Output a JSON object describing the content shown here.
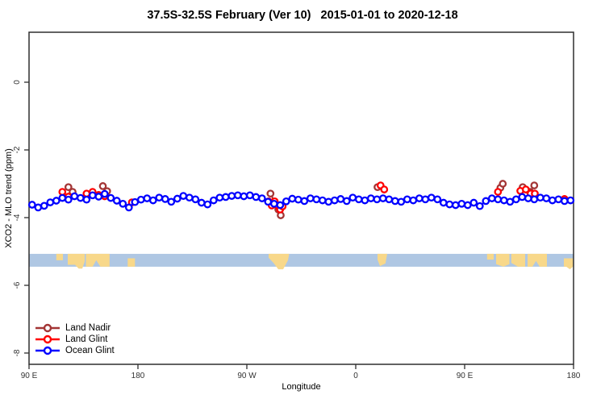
{
  "title": "37.5S-32.5S February (Ver 10)   2015-01-01 to 2020-12-18",
  "axes": {
    "xlabel": "Longitude",
    "ylabel": "XCO2 - MLO trend (ppm)",
    "x_unit_note": "degrees east of 90E along axis, wrapping 90E-180-90W-0-90E-180",
    "x_range": [
      0,
      450
    ],
    "y_range": [
      -8.35,
      1.45
    ],
    "x_ticks": [
      {
        "t": 0,
        "label": "90 E"
      },
      {
        "t": 90,
        "label": "180"
      },
      {
        "t": 180,
        "label": "90 W"
      },
      {
        "t": 270,
        "label": "0"
      },
      {
        "t": 360,
        "label": "90 E"
      },
      {
        "t": 450,
        "label": "180"
      }
    ],
    "y_ticks": [
      {
        "v": 0,
        "label": "0"
      },
      {
        "v": -2,
        "label": "-2"
      },
      {
        "v": -4,
        "label": "-4"
      },
      {
        "v": -6,
        "label": "-6"
      },
      {
        "v": -8,
        "label": "-8"
      }
    ],
    "axis_color": "#2e2e2e",
    "tick_label_color": "#333333"
  },
  "chart_data": {
    "type": "scatter",
    "title": "37.5S-32.5S February (Ver 10)   2015-01-01 to 2020-12-18",
    "xlabel": "Longitude",
    "ylabel": "XCO2 - MLO trend (ppm)",
    "grid": false,
    "legend_position": "bottom-left",
    "series": [
      {
        "name": "Land Nadir",
        "color": "#A33535",
        "points": [
          [
            32.5,
            -3.1
          ],
          [
            36,
            -3.24
          ],
          [
            61,
            -3.07
          ],
          [
            64.5,
            -3.22
          ],
          [
            199.5,
            -3.29
          ],
          [
            206,
            -3.76
          ],
          [
            208,
            -3.93
          ],
          [
            288,
            -3.1
          ],
          [
            389.5,
            -3.12
          ],
          [
            391.5,
            -3.0
          ],
          [
            408,
            -3.1
          ],
          [
            414,
            -3.24
          ],
          [
            417.5,
            -3.05
          ]
        ]
      },
      {
        "name": "Land Glint",
        "color": "#FF0000",
        "points": [
          [
            27.5,
            -3.24
          ],
          [
            32.5,
            -3.38
          ],
          [
            47.5,
            -3.29
          ],
          [
            52.5,
            -3.24
          ],
          [
            57.5,
            -3.33
          ],
          [
            62.5,
            -3.37
          ],
          [
            85,
            -3.55
          ],
          [
            198,
            -3.52
          ],
          [
            200.5,
            -3.64
          ],
          [
            203,
            -3.52
          ],
          [
            205.5,
            -3.64
          ],
          [
            207.5,
            -3.76
          ],
          [
            209.5,
            -3.67
          ],
          [
            290.5,
            -3.05
          ],
          [
            293.5,
            -3.17
          ],
          [
            387.5,
            -3.24
          ],
          [
            406,
            -3.21
          ],
          [
            410.5,
            -3.17
          ],
          [
            414.5,
            -3.29
          ],
          [
            418,
            -3.29
          ],
          [
            442.5,
            -3.45
          ]
        ]
      },
      {
        "name": "Ocean Glint",
        "color": "#0000FF",
        "points": [
          [
            2.5,
            -3.62
          ],
          [
            7.5,
            -3.7
          ],
          [
            12.5,
            -3.65
          ],
          [
            17.5,
            -3.55
          ],
          [
            22.5,
            -3.5
          ],
          [
            27.5,
            -3.42
          ],
          [
            32.5,
            -3.47
          ],
          [
            37.5,
            -3.37
          ],
          [
            42.5,
            -3.42
          ],
          [
            47.5,
            -3.47
          ],
          [
            52.5,
            -3.34
          ],
          [
            57.5,
            -3.38
          ],
          [
            62.5,
            -3.3
          ],
          [
            67.5,
            -3.42
          ],
          [
            72.5,
            -3.5
          ],
          [
            77.5,
            -3.59
          ],
          [
            82.5,
            -3.7
          ],
          [
            87.5,
            -3.54
          ],
          [
            92.5,
            -3.47
          ],
          [
            97.5,
            -3.43
          ],
          [
            102.5,
            -3.49
          ],
          [
            107.5,
            -3.41
          ],
          [
            112.5,
            -3.45
          ],
          [
            117.5,
            -3.53
          ],
          [
            122.5,
            -3.44
          ],
          [
            127.5,
            -3.36
          ],
          [
            132.5,
            -3.41
          ],
          [
            137.5,
            -3.46
          ],
          [
            142.5,
            -3.56
          ],
          [
            147.5,
            -3.61
          ],
          [
            152.5,
            -3.49
          ],
          [
            157.5,
            -3.41
          ],
          [
            162.5,
            -3.39
          ],
          [
            167.5,
            -3.36
          ],
          [
            172.5,
            -3.34
          ],
          [
            177.5,
            -3.37
          ],
          [
            182.5,
            -3.34
          ],
          [
            187.5,
            -3.39
          ],
          [
            192.5,
            -3.43
          ],
          [
            197.5,
            -3.53
          ],
          [
            202.5,
            -3.59
          ],
          [
            207.5,
            -3.63
          ],
          [
            212.5,
            -3.52
          ],
          [
            217.5,
            -3.44
          ],
          [
            222.5,
            -3.47
          ],
          [
            227.5,
            -3.51
          ],
          [
            232.5,
            -3.43
          ],
          [
            237.5,
            -3.46
          ],
          [
            242.5,
            -3.49
          ],
          [
            247.5,
            -3.53
          ],
          [
            252.5,
            -3.49
          ],
          [
            257.5,
            -3.45
          ],
          [
            262.5,
            -3.51
          ],
          [
            267.5,
            -3.41
          ],
          [
            272.5,
            -3.46
          ],
          [
            277.5,
            -3.49
          ],
          [
            282.5,
            -3.43
          ],
          [
            287.5,
            -3.46
          ],
          [
            292.5,
            -3.43
          ],
          [
            297.5,
            -3.46
          ],
          [
            302.5,
            -3.51
          ],
          [
            307.5,
            -3.53
          ],
          [
            312.5,
            -3.46
          ],
          [
            317.5,
            -3.49
          ],
          [
            322.5,
            -3.43
          ],
          [
            327.5,
            -3.46
          ],
          [
            332.5,
            -3.41
          ],
          [
            337.5,
            -3.46
          ],
          [
            342.5,
            -3.56
          ],
          [
            347.5,
            -3.61
          ],
          [
            352.5,
            -3.63
          ],
          [
            357.5,
            -3.59
          ],
          [
            362.5,
            -3.63
          ],
          [
            367.5,
            -3.56
          ],
          [
            372.5,
            -3.66
          ],
          [
            377.5,
            -3.51
          ],
          [
            382.5,
            -3.43
          ],
          [
            387.5,
            -3.46
          ],
          [
            392.5,
            -3.49
          ],
          [
            397.5,
            -3.53
          ],
          [
            402.5,
            -3.46
          ],
          [
            407.5,
            -3.39
          ],
          [
            412.5,
            -3.43
          ],
          [
            417.5,
            -3.46
          ],
          [
            422.5,
            -3.41
          ],
          [
            427.5,
            -3.43
          ],
          [
            432.5,
            -3.49
          ],
          [
            437.5,
            -3.46
          ],
          [
            442.5,
            -3.51
          ],
          [
            447.5,
            -3.49
          ]
        ]
      }
    ],
    "map_strip": {
      "y_top": -5.07,
      "y_bottom": -5.45,
      "ocean_color": "#AFC7E3",
      "land_color": "#F8D88A",
      "land_polygons": [
        {
          "name": "australia-west",
          "pts": [
            [
              22.5,
              0
            ],
            [
              28,
              0
            ],
            [
              28,
              0.5
            ],
            [
              22.5,
              0.5
            ]
          ]
        },
        {
          "name": "australia-mid",
          "pts": [
            [
              32,
              0
            ],
            [
              46,
              0
            ],
            [
              46,
              0.6
            ],
            [
              44,
              1.15
            ],
            [
              41,
              1.15
            ],
            [
              38,
              0.85
            ],
            [
              32,
              0.85
            ]
          ]
        },
        {
          "name": "australia-east",
          "pts": [
            [
              47,
              0
            ],
            [
              66.5,
              0
            ],
            [
              66.5,
              1
            ],
            [
              59,
              1
            ],
            [
              55.5,
              0.5
            ],
            [
              52.5,
              1
            ],
            [
              47,
              1
            ]
          ]
        },
        {
          "name": "new-zealand",
          "pts": [
            [
              81.5,
              0.35
            ],
            [
              87.5,
              0.35
            ],
            [
              87.5,
              1
            ],
            [
              81.5,
              1
            ]
          ]
        },
        {
          "name": "south-america",
          "pts": [
            [
              198,
              0
            ],
            [
              215,
              0
            ],
            [
              214,
              0.5
            ],
            [
              210,
              1.2
            ],
            [
              206,
              1.2
            ],
            [
              202,
              0.7
            ],
            [
              198,
              0.3
            ]
          ]
        },
        {
          "name": "south-africa",
          "pts": [
            [
              288,
              0
            ],
            [
              296,
              0
            ],
            [
              294.5,
              0.75
            ],
            [
              290,
              0.95
            ],
            [
              288,
              0.45
            ]
          ]
        },
        {
          "name": "australia-west-2",
          "pts": [
            [
              378.5,
              0
            ],
            [
              384,
              0
            ],
            [
              384,
              0.45
            ],
            [
              378.5,
              0.45
            ]
          ]
        },
        {
          "name": "australia-mid-2a",
          "pts": [
            [
              386,
              0
            ],
            [
              397,
              0
            ],
            [
              397,
              0.8
            ],
            [
              392,
              1
            ],
            [
              386,
              0.8
            ]
          ]
        },
        {
          "name": "australia-mid-2b",
          "pts": [
            [
              398.5,
              0
            ],
            [
              410,
              0
            ],
            [
              410,
              1
            ],
            [
              404,
              1
            ],
            [
              398.5,
              0.7
            ]
          ]
        },
        {
          "name": "australia-east-2",
          "pts": [
            [
              412,
              0
            ],
            [
              428,
              0
            ],
            [
              428,
              1
            ],
            [
              422,
              1
            ],
            [
              419,
              0.55
            ],
            [
              416,
              1
            ],
            [
              412,
              1
            ]
          ]
        },
        {
          "name": "new-zealand-2",
          "pts": [
            [
              442,
              0.35
            ],
            [
              449.5,
              0.35
            ],
            [
              449.5,
              1
            ],
            [
              447,
              1.2
            ],
            [
              444,
              1
            ],
            [
              442,
              1
            ]
          ]
        }
      ]
    }
  },
  "legend": {
    "items": [
      {
        "label": "Land Nadir",
        "color": "#A33535"
      },
      {
        "label": "Land Glint",
        "color": "#FF0000"
      },
      {
        "label": "Ocean Glint",
        "color": "#0000FF"
      }
    ]
  }
}
